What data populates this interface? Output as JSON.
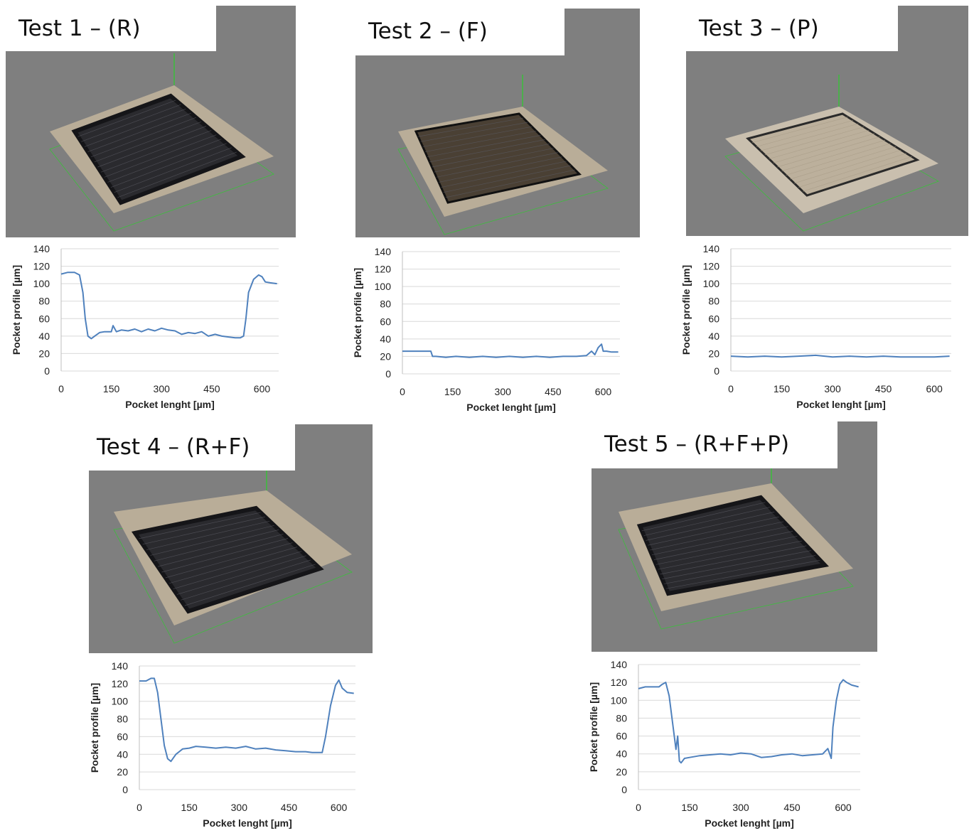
{
  "panels": [
    {
      "title": "Test 1 – (R)"
    },
    {
      "title": "Test 2 – (F)"
    },
    {
      "title": "Test 3 – (P)"
    },
    {
      "title": "Test 4 –  (R+F)"
    },
    {
      "title": "Test 5 –  (R+F+P)"
    }
  ],
  "colors": {
    "line": "#4f81bd",
    "grid": "#d9d9d9",
    "viewport": "#7f7f7f",
    "frame": "#3cbf3c"
  },
  "chart_data": [
    {
      "type": "line",
      "xlabel": "Pocket lenght [µm]",
      "ylabel": "Pocket profile [µm]",
      "ylim": [
        0,
        140
      ],
      "yticks": [
        0,
        20,
        40,
        60,
        80,
        100,
        120,
        140
      ],
      "xlim": [
        0,
        650
      ],
      "xticks": [
        0,
        150,
        300,
        450,
        600
      ],
      "grid": true,
      "series": [
        {
          "x": [
            0,
            20,
            40,
            55,
            65,
            72,
            80,
            90,
            100,
            115,
            130,
            150,
            155,
            165,
            180,
            200,
            220,
            240,
            260,
            280,
            300,
            320,
            340,
            360,
            380,
            400,
            420,
            440,
            460,
            480,
            500,
            520,
            535,
            545,
            552,
            560,
            575,
            590,
            600,
            610,
            625,
            645
          ],
          "y": [
            111,
            113,
            113,
            110,
            90,
            60,
            40,
            37,
            40,
            44,
            45,
            45,
            52,
            45,
            47,
            46,
            48,
            45,
            48,
            46,
            49,
            47,
            46,
            42,
            44,
            43,
            45,
            40,
            42,
            40,
            39,
            38,
            38,
            40,
            60,
            90,
            105,
            110,
            108,
            102,
            101,
            100
          ]
        }
      ]
    },
    {
      "type": "line",
      "xlabel": "Pocket lenght [µm]",
      "ylabel": "Pocket profile [µm]",
      "ylim": [
        0,
        140
      ],
      "yticks": [
        0,
        20,
        40,
        60,
        80,
        100,
        120,
        140
      ],
      "xlim": [
        0,
        650
      ],
      "xticks": [
        0,
        150,
        300,
        450,
        600
      ],
      "grid": true,
      "series": [
        {
          "x": [
            0,
            30,
            60,
            85,
            90,
            100,
            130,
            160,
            200,
            240,
            280,
            320,
            360,
            400,
            440,
            480,
            520,
            550,
            565,
            575,
            585,
            595,
            600,
            610,
            625,
            645
          ],
          "y": [
            26,
            26,
            26,
            26,
            20,
            20,
            19,
            20,
            19,
            20,
            19,
            20,
            19,
            20,
            19,
            20,
            20,
            21,
            26,
            22,
            30,
            34,
            26,
            26,
            25,
            25
          ]
        }
      ]
    },
    {
      "type": "line",
      "xlabel": "Pocket lenght [µm]",
      "ylabel": "Pocket profile [µm]",
      "ylim": [
        0,
        140
      ],
      "yticks": [
        0,
        20,
        40,
        60,
        80,
        100,
        120,
        140
      ],
      "xlim": [
        0,
        650
      ],
      "xticks": [
        0,
        150,
        300,
        450,
        600
      ],
      "grid": true,
      "series": [
        {
          "x": [
            0,
            50,
            100,
            150,
            200,
            250,
            300,
            350,
            400,
            450,
            500,
            550,
            600,
            645
          ],
          "y": [
            17,
            16,
            17,
            16,
            17,
            18,
            16,
            17,
            16,
            17,
            16,
            16,
            16,
            17
          ]
        }
      ]
    },
    {
      "type": "line",
      "xlabel": "Pocket lenght [µm]",
      "ylabel": "Pocket profile [µm]",
      "ylim": [
        0,
        140
      ],
      "yticks": [
        0,
        20,
        40,
        60,
        80,
        100,
        120,
        140
      ],
      "xlim": [
        0,
        650
      ],
      "xticks": [
        0,
        150,
        300,
        450,
        600
      ],
      "grid": true,
      "series": [
        {
          "x": [
            0,
            20,
            35,
            45,
            55,
            65,
            75,
            85,
            95,
            110,
            130,
            150,
            170,
            200,
            230,
            260,
            290,
            320,
            350,
            380,
            410,
            440,
            470,
            500,
            520,
            540,
            550,
            560,
            575,
            590,
            600,
            610,
            625,
            645
          ],
          "y": [
            123,
            123,
            126,
            126,
            110,
            80,
            50,
            35,
            32,
            40,
            46,
            47,
            49,
            48,
            47,
            48,
            47,
            49,
            46,
            47,
            45,
            44,
            43,
            43,
            42,
            42,
            42,
            60,
            95,
            118,
            124,
            115,
            110,
            109
          ]
        }
      ]
    },
    {
      "type": "line",
      "xlabel": "Pocket lenght [µm]",
      "ylabel": "Pocket profile [µm]",
      "ylim": [
        0,
        140
      ],
      "yticks": [
        0,
        20,
        40,
        60,
        80,
        100,
        120,
        140
      ],
      "xlim": [
        0,
        650
      ],
      "xticks": [
        0,
        150,
        300,
        450,
        600
      ],
      "grid": true,
      "series": [
        {
          "x": [
            0,
            20,
            40,
            60,
            70,
            80,
            90,
            100,
            110,
            115,
            120,
            125,
            135,
            150,
            180,
            210,
            240,
            270,
            300,
            330,
            360,
            390,
            420,
            450,
            480,
            510,
            540,
            555,
            565,
            570,
            580,
            590,
            600,
            610,
            625,
            645
          ],
          "y": [
            113,
            115,
            115,
            115,
            118,
            120,
            105,
            75,
            45,
            60,
            32,
            30,
            35,
            36,
            38,
            39,
            40,
            39,
            41,
            40,
            36,
            37,
            39,
            40,
            38,
            39,
            40,
            46,
            35,
            70,
            100,
            118,
            123,
            120,
            117,
            115
          ]
        }
      ]
    }
  ]
}
